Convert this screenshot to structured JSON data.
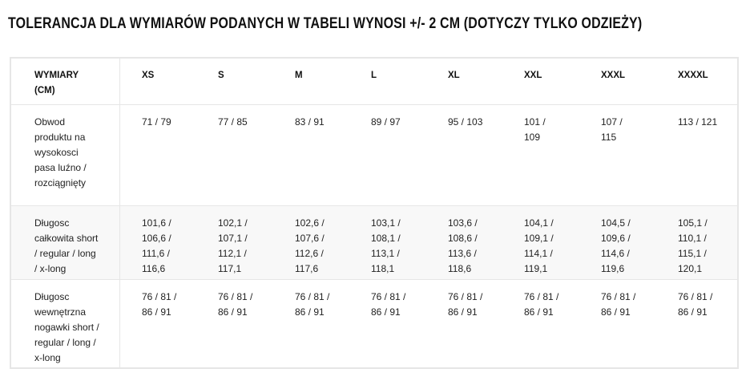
{
  "title": "TOLERANCJA DLA WYMIARÓW PODANYCH W TABELI WYNOSI +/- 2 CM (DOTYCZY TYLKO ODZIEŻY)",
  "table": {
    "header_label": "WYMIARY (CM)",
    "sizes": [
      "XS",
      "S",
      "M",
      "L",
      "XL",
      "XXL",
      "XXXL",
      "XXXXL"
    ],
    "rows": [
      {
        "label": "Obwod produktu na wysokosci pasa luźno / rozciągnięty",
        "values": [
          "71 / 79",
          "77 / 85",
          "83 / 91",
          "89 / 97",
          "95 / 103",
          "101 / 109",
          "107 / 115",
          "113 / 121"
        ]
      },
      {
        "label": "Długosc całkowita short / regular / long / x-long",
        "values": [
          "101,6 / 106,6 / 111,6 / 116,6",
          "102,1 / 107,1 / 112,1 / 117,1",
          "102,6 / 107,6 / 112,6 / 117,6",
          "103,1 / 108,1 / 113,1 / 118,1",
          "103,6 / 108,6 / 113,6 / 118,6",
          "104,1 / 109,1 / 114,1 / 119,1",
          "104,5 / 109,6 / 114,6 / 119,6",
          "105,1 / 110,1 / 115,1 / 120,1"
        ]
      },
      {
        "label": "Długosc wewnętrzna nogawki short / regular / long / x-long",
        "values": [
          "76 / 81 / 86 / 91",
          "76 / 81 / 86 / 91",
          "76 / 81 / 86 / 91",
          "76 / 81 / 86 / 91",
          "76 / 81 / 86 / 91",
          "76 / 81 / 86 / 91",
          "76 / 81 / 86 / 91",
          "76 / 81 / 86 / 91"
        ]
      }
    ]
  }
}
